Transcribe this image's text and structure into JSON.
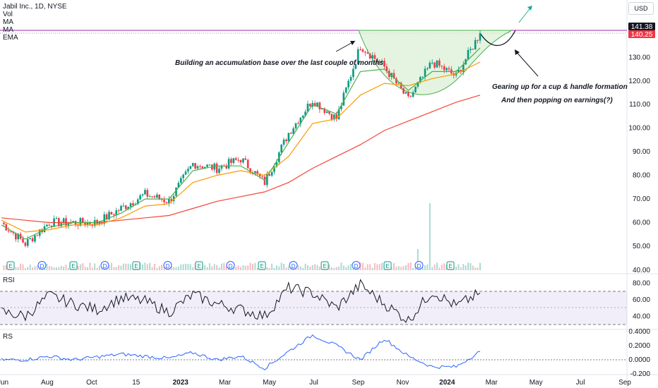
{
  "legend": {
    "title": "Jabil Inc., 1D, NYSE",
    "vol": "Vol",
    "ma1": "MA",
    "ma2": "MA",
    "ema": "EMA"
  },
  "currency_button": "USD",
  "annotations": {
    "accumulation": "Building an accumulation base over the last couple of months",
    "cup_handle": "Gearing up for a cup & handle formation",
    "earnings": "And then popping on earnings(?)"
  },
  "price_tags": {
    "high": "141.38",
    "current": "140.25"
  },
  "panes": {
    "rsi_label": "RSI",
    "rs_label": "RS"
  },
  "colors": {
    "up": "#089981",
    "down": "#f23645",
    "ma_fast": "#4caf50",
    "ma_mid": "#ff9800",
    "ema_slow": "#f44336",
    "rsi": "#131722",
    "rs": "#2962ff",
    "cup_fill": "#d9f0d3",
    "arrow_up": "#22ab94"
  },
  "chart_data": {
    "type": "line",
    "x_tick_labels": [
      "Jun",
      "Aug",
      "Oct",
      "15",
      "2023",
      "Mar",
      "May",
      "Jul",
      "Sep",
      "Nov",
      "2024",
      "Mar",
      "May",
      "Jul",
      "Sep"
    ],
    "price_axis": {
      "ticks": [
        "50.00",
        "60.00",
        "70.00",
        "80.00",
        "90.00",
        "100.00",
        "110.00",
        "120.00",
        "130.00",
        "140.25",
        "141.38"
      ],
      "ylim": [
        40,
        145
      ]
    },
    "rsi_axis": {
      "ticks": [
        "40.00",
        "60.00",
        "80.00"
      ],
      "ylim": [
        30,
        90
      ],
      "bands": [
        30,
        70
      ]
    },
    "rs_axis": {
      "ticks": [
        "-0.200",
        "0.0000",
        "0.2000",
        "0.4000"
      ],
      "ylim": [
        -0.25,
        0.45
      ]
    },
    "event_markers": [
      "E",
      "D",
      "E",
      "D",
      "E",
      "D",
      "E",
      "D",
      "E",
      "D",
      "E",
      "D",
      "E",
      "D",
      "E"
    ],
    "price_series": {
      "x": [
        "Jun 2022",
        "Jul 2022",
        "Aug 2022",
        "Sep 2022",
        "Oct 2022",
        "Nov 2022",
        "Dec 2022",
        "Jan 2023",
        "Feb 2023",
        "Mar 2023",
        "Apr 2023",
        "May 2023",
        "Jun 2023",
        "Jul 2023",
        "Aug 2023",
        "Sep 2023",
        "Oct 2023",
        "Nov 2023",
        "Dec 2023",
        "Jan 2024",
        "Feb 2024"
      ],
      "close": [
        60,
        51,
        60,
        60,
        60,
        66,
        72,
        69,
        85,
        83,
        87,
        77,
        98,
        112,
        104,
        135,
        126,
        112,
        128,
        122,
        140.25
      ]
    },
    "ma_fast_values": [
      59,
      53,
      58,
      60,
      60,
      64,
      70,
      70,
      82,
      84,
      84,
      78,
      94,
      110,
      106,
      124,
      125,
      116,
      124,
      124,
      134
    ],
    "ma_mid_values": [
      61,
      56,
      57,
      59,
      59,
      62,
      67,
      68,
      77,
      80,
      82,
      80,
      88,
      102,
      104,
      114,
      119,
      118,
      121,
      123,
      128
    ],
    "ema_slow_values": [
      62,
      61,
      60,
      60,
      60,
      61,
      62,
      63,
      66,
      69,
      71,
      73,
      77,
      83,
      88,
      93,
      99,
      103,
      107,
      111,
      114
    ],
    "rsi_values": [
      45,
      40,
      65,
      55,
      48,
      62,
      58,
      45,
      66,
      55,
      48,
      40,
      74,
      68,
      50,
      78,
      55,
      35,
      70,
      52,
      68
    ],
    "rs_values": [
      0.0,
      0.0,
      0.05,
      0.0,
      0.04,
      0.08,
      0.05,
      0.02,
      0.1,
      0.0,
      0.05,
      -0.12,
      0.12,
      0.35,
      0.2,
      0.0,
      0.3,
      0.05,
      -0.1,
      -0.1,
      0.12
    ]
  }
}
